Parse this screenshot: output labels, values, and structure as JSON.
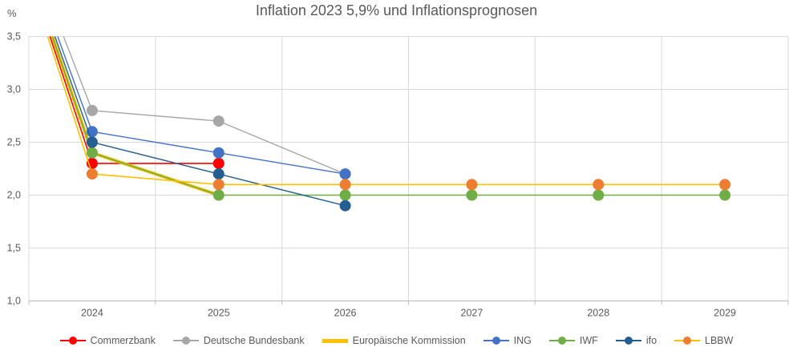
{
  "header": {
    "title": "Inflation 2023 5,9% und Inflationsprognosen",
    "y_unit": "%"
  },
  "chart_data": {
    "type": "line",
    "title": "Inflation 2023 5,9% und Inflationsprognosen",
    "ylabel": "%",
    "xlabel": "",
    "categories": [
      "2024",
      "2025",
      "2026",
      "2027",
      "2028",
      "2029"
    ],
    "anchor_point": {
      "year": "2023",
      "value": 5.9,
      "note": "all lines start at Inflation 2023 = 5,9% left of the plot and are clipped at the 3,5 axis maximum"
    },
    "ylim": [
      1.0,
      3.5
    ],
    "y_tick_values": [
      1.0,
      1.5,
      2.0,
      2.5,
      3.0,
      3.5
    ],
    "y_tick_labels": [
      "1,0",
      "1,5",
      "2,0",
      "2,5",
      "3,0",
      "3,5"
    ],
    "grid": true,
    "legend_position": "bottom",
    "colors": {
      "gridline": "#d9d9d9",
      "axis_line": "#bfbfbf",
      "tick_text": "#595959",
      "title_text": "#595959"
    },
    "series": [
      {
        "name": "Commerzbank",
        "line_color": "#ff0000",
        "marker_color": "#ff0000",
        "line_width": 1.6,
        "marker": true,
        "values": [
          2.3,
          2.3,
          null,
          null,
          null,
          null
        ]
      },
      {
        "name": "Deutsche Bundesbank",
        "line_color": "#a6a6a6",
        "marker_color": "#a6a6a6",
        "line_width": 1.4,
        "marker": true,
        "values": [
          2.8,
          2.7,
          2.2,
          null,
          null,
          null
        ]
      },
      {
        "name": "Europäische Kommission",
        "line_color": "#ffc000",
        "marker_color": null,
        "line_width": 4,
        "marker": false,
        "values": [
          2.4,
          2.0,
          null,
          null,
          null,
          null
        ]
      },
      {
        "name": "ING",
        "line_color": "#4472c4",
        "marker_color": "#4472c4",
        "line_width": 1.4,
        "marker": true,
        "values": [
          2.6,
          2.4,
          2.2,
          null,
          null,
          null
        ]
      },
      {
        "name": "IWF",
        "line_color": "#70ad47",
        "marker_color": "#70ad47",
        "line_width": 1.6,
        "marker": true,
        "values": [
          2.4,
          2.0,
          2.0,
          2.0,
          2.0,
          2.0
        ]
      },
      {
        "name": "ifo",
        "line_color": "#255e91",
        "marker_color": "#255e91",
        "line_width": 1.4,
        "marker": true,
        "values": [
          2.5,
          2.2,
          1.9,
          null,
          null,
          null
        ]
      },
      {
        "name": "LBBW",
        "line_color": "#ffc000",
        "marker_color": "#ed7d31",
        "line_width": 1.6,
        "marker": true,
        "values": [
          2.2,
          2.1,
          2.1,
          2.1,
          2.1,
          2.1
        ]
      }
    ]
  }
}
